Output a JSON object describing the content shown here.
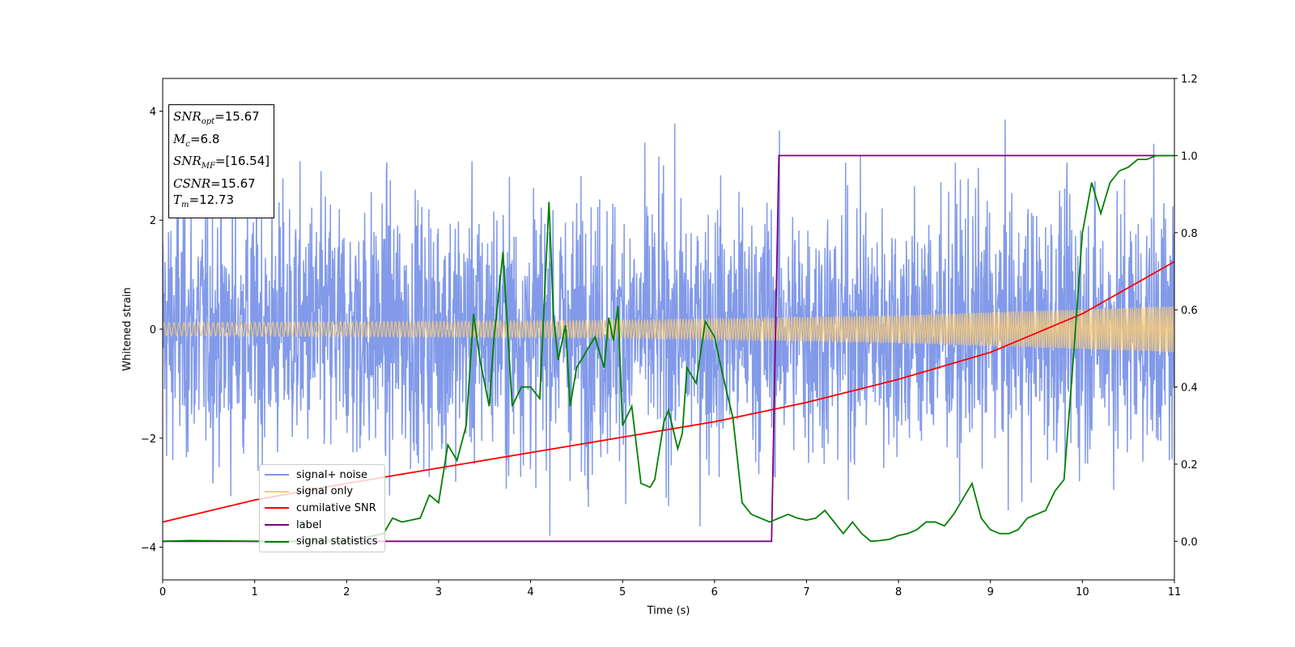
{
  "chart_data": {
    "type": "line",
    "xlabel": "Time (s)",
    "ylabel": "Whitened strain",
    "xlim": [
      0,
      11
    ],
    "ylim": [
      -4.6,
      4.6
    ],
    "y2lim": [
      -0.1,
      1.2
    ],
    "x_ticks": [
      "0",
      "1",
      "2",
      "3",
      "4",
      "5",
      "6",
      "7",
      "8",
      "9",
      "10",
      "11"
    ],
    "y_ticks": [
      "4",
      "2",
      "0",
      "−2",
      "−4"
    ],
    "y2_ticks": [
      "1.2",
      "1.0",
      "0.8",
      "0.6",
      "0.4",
      "0.2",
      "0.0"
    ],
    "legend_position": "lower-left",
    "annotation_box": {
      "snr_opt": "15.67",
      "mc": "6.8",
      "snr_mf": "[16.54]",
      "csnr": "15.67",
      "tm": "12.73"
    },
    "series": [
      {
        "name": "signal+ noise",
        "color": "#7b95e8",
        "axis": "left",
        "description_values": {
          "type": "noise",
          "std": 1.2,
          "peak_range": [
            -4.1,
            4.2
          ]
        }
      },
      {
        "name": "signal only",
        "color": "#f5c97a",
        "axis": "left",
        "envelope": {
          "x": [
            0,
            5,
            8,
            11
          ],
          "amplitude": [
            0.12,
            0.16,
            0.25,
            0.42
          ]
        }
      },
      {
        "name": "cumilative SNR",
        "color": "#ff0000",
        "axis": "right",
        "x": [
          0,
          1,
          2,
          3,
          4,
          5,
          6,
          7,
          8,
          9,
          10,
          11
        ],
        "y": [
          0.05,
          0.107,
          0.15,
          0.19,
          0.23,
          0.27,
          0.31,
          0.36,
          0.42,
          0.49,
          0.59,
          0.725
        ]
      },
      {
        "name": "label",
        "color": "#800080",
        "axis": "right",
        "x": [
          0,
          6.62,
          6.7,
          11
        ],
        "y": [
          0.0,
          0.0,
          1.0,
          1.0
        ]
      },
      {
        "name": "signal statistics",
        "color": "#008000",
        "axis": "right",
        "x": [
          0,
          0.3,
          1,
          2,
          2.4,
          2.5,
          2.6,
          2.7,
          2.8,
          2.9,
          3.0,
          3.1,
          3.2,
          3.3,
          3.38,
          3.45,
          3.55,
          3.6,
          3.7,
          3.8,
          3.9,
          4.0,
          4.1,
          4.2,
          4.25,
          4.3,
          4.38,
          4.43,
          4.5,
          4.6,
          4.7,
          4.8,
          4.85,
          4.9,
          4.95,
          5.0,
          5.1,
          5.2,
          5.3,
          5.35,
          5.45,
          5.5,
          5.6,
          5.65,
          5.7,
          5.8,
          5.9,
          6.0,
          6.1,
          6.2,
          6.3,
          6.4,
          6.5,
          6.6,
          6.7,
          6.8,
          6.9,
          7.0,
          7.1,
          7.2,
          7.3,
          7.4,
          7.5,
          7.6,
          7.7,
          7.8,
          7.9,
          8.0,
          8.1,
          8.2,
          8.3,
          8.4,
          8.5,
          8.6,
          8.7,
          8.8,
          8.9,
          9.0,
          9.1,
          9.2,
          9.3,
          9.4,
          9.5,
          9.6,
          9.7,
          9.8,
          9.9,
          10.0,
          10.1,
          10.2,
          10.3,
          10.4,
          10.5,
          10.6,
          10.7,
          10.8,
          10.9,
          11.0
        ],
        "y": [
          0.0,
          0.002,
          0.0,
          0.0,
          0.02,
          0.06,
          0.05,
          0.055,
          0.06,
          0.12,
          0.1,
          0.25,
          0.21,
          0.3,
          0.59,
          0.47,
          0.35,
          0.52,
          0.75,
          0.35,
          0.4,
          0.4,
          0.37,
          0.88,
          0.58,
          0.47,
          0.56,
          0.35,
          0.45,
          0.49,
          0.53,
          0.45,
          0.58,
          0.52,
          0.61,
          0.3,
          0.35,
          0.15,
          0.14,
          0.16,
          0.31,
          0.34,
          0.24,
          0.28,
          0.45,
          0.41,
          0.57,
          0.53,
          0.42,
          0.32,
          0.1,
          0.07,
          0.06,
          0.05,
          0.06,
          0.07,
          0.06,
          0.055,
          0.06,
          0.08,
          0.05,
          0.02,
          0.05,
          0.02,
          0.0,
          0.002,
          0.005,
          0.015,
          0.02,
          0.03,
          0.05,
          0.05,
          0.04,
          0.07,
          0.11,
          0.15,
          0.06,
          0.03,
          0.02,
          0.02,
          0.03,
          0.06,
          0.07,
          0.08,
          0.13,
          0.16,
          0.47,
          0.8,
          0.93,
          0.85,
          0.93,
          0.96,
          0.97,
          0.99,
          0.99,
          1.0,
          1.0,
          1.0
        ]
      }
    ]
  }
}
